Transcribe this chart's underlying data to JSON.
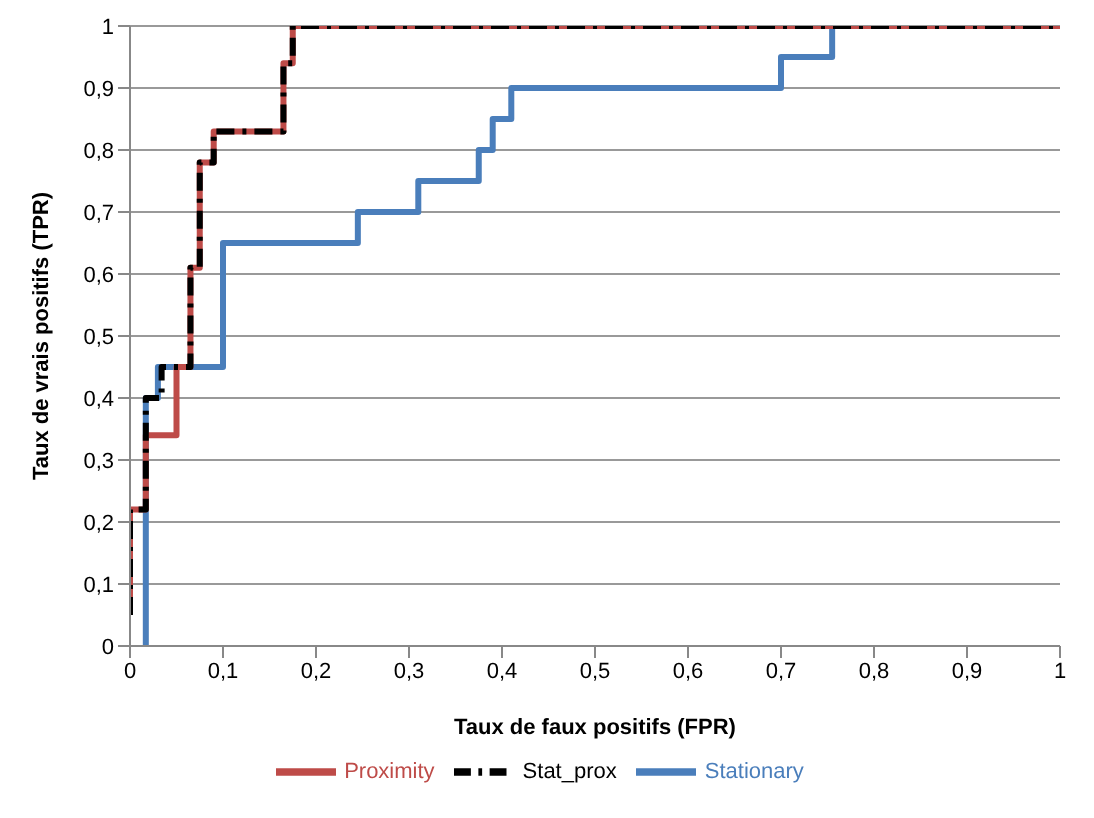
{
  "chart_data": {
    "type": "line",
    "xlabel": "Taux de faux positifs (FPR)",
    "ylabel": "Taux de vrais positifs (TPR)",
    "xlim": [
      0,
      1
    ],
    "ylim": [
      0,
      1
    ],
    "xticks": [
      0,
      {
        "value": 0.1,
        "label": "0,1"
      },
      {
        "value": 0.2,
        "label": "0,2"
      },
      {
        "value": 0.3,
        "label": "0,3"
      },
      {
        "value": 0.4,
        "label": "0,4"
      },
      {
        "value": 0.5,
        "label": "0,5"
      },
      {
        "value": 0.6,
        "label": "0,6"
      },
      {
        "value": 0.7,
        "label": "0,7"
      },
      {
        "value": 0.8,
        "label": "0,8"
      },
      {
        "value": 0.9,
        "label": "0,9"
      },
      1
    ],
    "yticks": [
      0,
      {
        "value": 0.1,
        "label": "0,1"
      },
      {
        "value": 0.2,
        "label": "0,2"
      },
      {
        "value": 0.3,
        "label": "0,3"
      },
      {
        "value": 0.4,
        "label": "0,4"
      },
      {
        "value": 0.5,
        "label": "0,5"
      },
      {
        "value": 0.6,
        "label": "0,6"
      },
      {
        "value": 0.7,
        "label": "0,7"
      },
      {
        "value": 0.8,
        "label": "0,8"
      },
      {
        "value": 0.9,
        "label": "0,9"
      },
      1
    ],
    "grid": "y",
    "legend": "bottom",
    "marker": "none",
    "series": [
      {
        "name": "Stationary",
        "color": "#4a7ebb",
        "line_style": "solid",
        "x": [
          0.017,
          0.017,
          0.03,
          0.03,
          0.1,
          0.1,
          0.245,
          0.245,
          0.31,
          0.31,
          0.375,
          0.375,
          0.39,
          0.39,
          0.41,
          0.41,
          0.7,
          0.7,
          0.755,
          0.755,
          1
        ],
        "values": [
          0,
          0.4,
          0.4,
          0.45,
          0.45,
          0.65,
          0.65,
          0.7,
          0.7,
          0.75,
          0.75,
          0.8,
          0.8,
          0.85,
          0.85,
          0.9,
          0.9,
          0.95,
          0.95,
          1,
          1
        ]
      },
      {
        "name": "Proximity",
        "color": "#be4b48",
        "line_style": "solid",
        "x": [
          0,
          0,
          0.017,
          0.017,
          0.05,
          0.05,
          0.065,
          0.065,
          0.075,
          0.075,
          0.09,
          0.09,
          0.165,
          0.165,
          0.175,
          0.175,
          1
        ],
        "values": [
          0.05,
          0.22,
          0.22,
          0.34,
          0.34,
          0.45,
          0.45,
          0.61,
          0.61,
          0.78,
          0.78,
          0.83,
          0.83,
          0.94,
          0.94,
          1,
          1
        ]
      },
      {
        "name": "Stat_prox",
        "color": "#000000",
        "line_style": "dashed",
        "x": [
          0,
          0,
          0.017,
          0.017,
          0.034,
          0.034,
          0.065,
          0.065,
          0.075,
          0.075,
          0.09,
          0.09,
          0.165,
          0.165,
          0.175,
          0.175,
          1
        ],
        "values": [
          0.05,
          0.22,
          0.22,
          0.4,
          0.4,
          0.45,
          0.45,
          0.61,
          0.61,
          0.78,
          0.78,
          0.83,
          0.83,
          0.94,
          0.94,
          1,
          1
        ]
      }
    ]
  }
}
